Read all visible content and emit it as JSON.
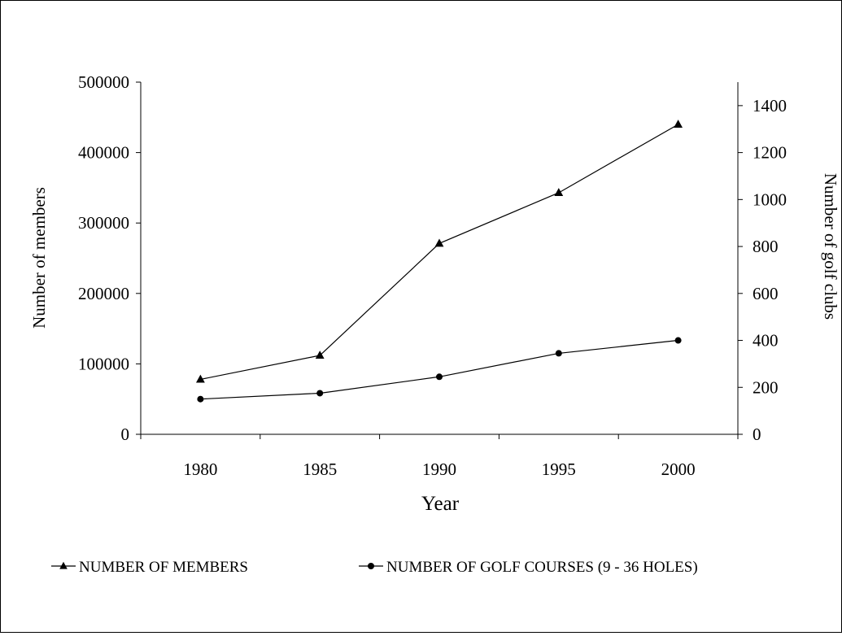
{
  "chart_data": {
    "type": "line",
    "x": [
      1980,
      1985,
      1990,
      1995,
      2000
    ],
    "xlabel": "Year",
    "ylabel": "Number of members",
    "y2label": "Number of golf clubs",
    "ylim": [
      0,
      500000
    ],
    "y2lim": [
      0,
      1500
    ],
    "yticks": [
      "0",
      "100000",
      "200000",
      "300000",
      "400000",
      "500000"
    ],
    "y2ticks": [
      "0",
      "200",
      "400",
      "600",
      "800",
      "1000",
      "1200",
      "1400"
    ],
    "xticks": [
      "1980",
      "1985",
      "1990",
      "1995",
      "2000"
    ],
    "grid": false,
    "legend_position": "bottom",
    "series": [
      {
        "name": "NUMBER OF MEMBERS",
        "axis": "left",
        "marker": "triangle",
        "values": [
          78000,
          112000,
          271000,
          343000,
          440000
        ]
      },
      {
        "name": "NUMBER OF GOLF COURSES (9 - 36 HOLES)",
        "axis": "right",
        "marker": "circle",
        "values": [
          150,
          175,
          245,
          345,
          400
        ]
      }
    ],
    "line_color": "#000000"
  }
}
